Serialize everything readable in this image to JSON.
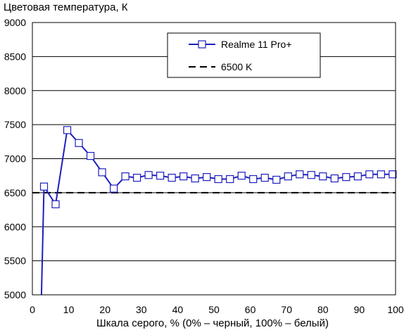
{
  "chart_data": {
    "type": "line",
    "title": "",
    "ylabel": "Цветовая температура, К",
    "xlabel": "Шкала серого, % (0% – черный, 100% – белый)",
    "xlim": [
      0,
      100
    ],
    "ylim": [
      5000,
      9000
    ],
    "xticks": [
      0,
      10,
      20,
      30,
      40,
      50,
      60,
      70,
      80,
      90,
      100
    ],
    "yticks": [
      5000,
      5500,
      6000,
      6500,
      7000,
      7500,
      8000,
      8500,
      9000
    ],
    "grid": "horizontal",
    "legend_position": "top-right",
    "colors": {
      "series": "#1f1fbf",
      "reference": "#000000",
      "grid": "#000000"
    },
    "series": [
      {
        "name": "Realme 11 Pro+",
        "marker": "square",
        "x": [
          3.2,
          6.4,
          9.6,
          12.8,
          16.0,
          19.2,
          22.4,
          25.6,
          28.8,
          32.0,
          35.2,
          38.4,
          41.6,
          44.8,
          48.0,
          51.2,
          54.4,
          57.6,
          60.8,
          64.0,
          67.2,
          70.4,
          73.6,
          76.8,
          80.0,
          83.2,
          86.4,
          89.6,
          92.8,
          96.0,
          99.2
        ],
        "y": [
          6590,
          6330,
          7420,
          7230,
          7040,
          6800,
          6560,
          6740,
          6720,
          6760,
          6750,
          6720,
          6740,
          6710,
          6730,
          6700,
          6700,
          6750,
          6700,
          6720,
          6690,
          6740,
          6770,
          6760,
          6740,
          6710,
          6730,
          6740,
          6770,
          6770,
          6770
        ],
        "lead_in": {
          "x": [
            2.5,
            3.2
          ],
          "y": [
            5000,
            6590
          ]
        }
      },
      {
        "name": "6500 K",
        "style": "dashed",
        "x": [
          0,
          100
        ],
        "y": [
          6500,
          6500
        ]
      }
    ]
  }
}
